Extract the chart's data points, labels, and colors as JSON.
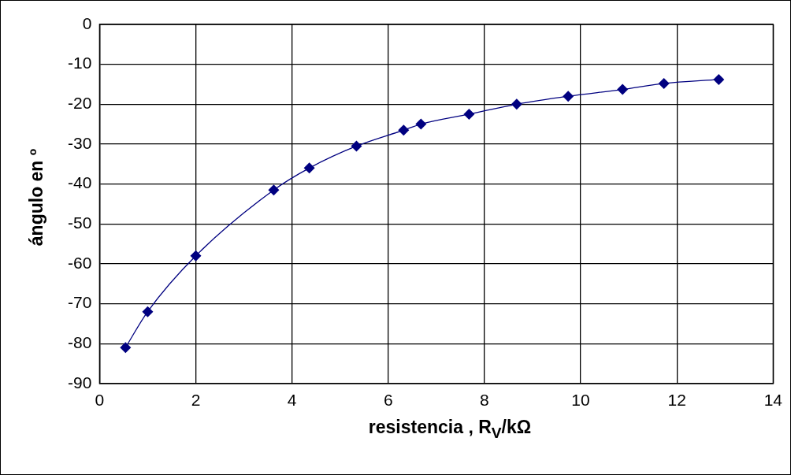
{
  "chart_data": {
    "type": "line",
    "xlabel": "resistencia , R$_{V}$/kΩ",
    "ylabel": "ángulo en º",
    "series": [
      {
        "color": "#000080",
        "x": [
          0.54,
          1.0,
          2.0,
          3.62,
          4.36,
          5.34,
          6.32,
          6.68,
          7.68,
          8.67,
          9.74,
          10.87,
          11.73,
          12.87
        ],
        "values": [
          -81,
          -72,
          -58,
          -41.5,
          -36,
          -30.5,
          -26.5,
          -25,
          -22.5,
          -20,
          -18,
          -16.3,
          -14.8,
          -13.8
        ]
      }
    ],
    "xlim": [
      0,
      14
    ],
    "xticks": [
      0,
      2,
      4,
      6,
      8,
      10,
      12,
      14
    ],
    "ylim": [
      -90,
      0
    ],
    "yticks": [
      -90,
      -80,
      -70,
      -60,
      -50,
      -40,
      -30,
      -20,
      -10,
      0
    ],
    "grid": true,
    "legend": false,
    "marker": "diamond",
    "line_style": "solid"
  }
}
